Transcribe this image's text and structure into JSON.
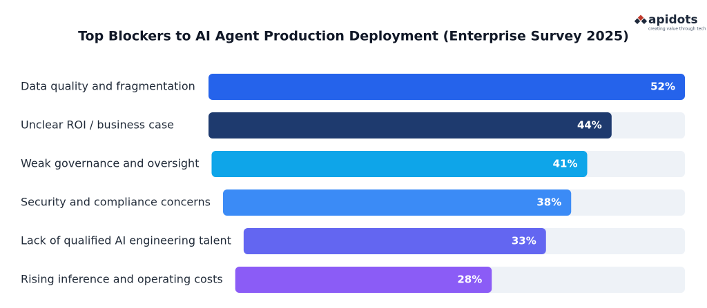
{
  "chart_data": {
    "type": "bar",
    "orientation": "horizontal",
    "title": "Top Blockers to AI Agent Production Deployment (Enterprise Survey 2025)",
    "brand": "apidots",
    "tagline": "creating value through tech",
    "categories": [
      "Data quality and fragmentation",
      "Unclear ROI / business case",
      "Weak governance and oversight",
      "Security and compliance concerns",
      "Lack of qualified AI engineering talent",
      "Rising inference and operating costs"
    ],
    "values": [
      52,
      44,
      41,
      38,
      33,
      28
    ],
    "value_labels": [
      "52%",
      "44%",
      "41%",
      "38%",
      "33%",
      "28%"
    ],
    "colors": [
      "#2563eb",
      "#1e3a6e",
      "#0ea5e9",
      "#3b8bf6",
      "#6366f1",
      "#8b5cf6"
    ]
  }
}
